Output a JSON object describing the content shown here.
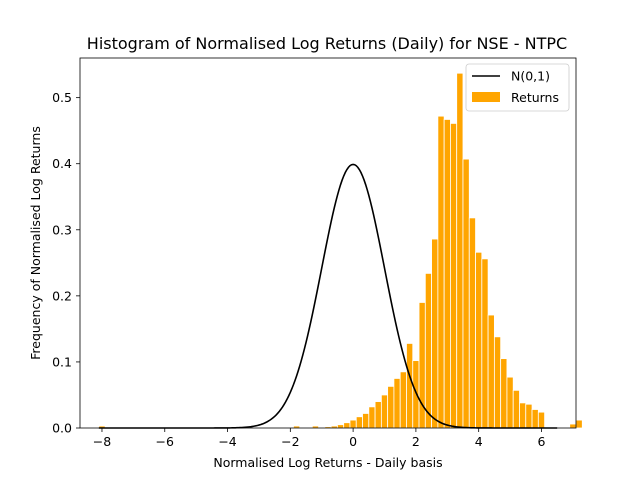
{
  "chart_data": {
    "type": "bar",
    "title": "Histogram of Normalised Log Returns (Daily) for NSE - NTPC",
    "xlabel": "Normalised Log Returns - Daily basis",
    "ylabel": "Frequency of Normalised Log Returns",
    "xlim": [
      -8.7,
      7.1
    ],
    "ylim": [
      0,
      0.56
    ],
    "xticks": [
      -8,
      -6,
      -4,
      -2,
      0,
      2,
      4,
      6
    ],
    "yticks": [
      0.0,
      0.1,
      0.2,
      0.3,
      0.4,
      0.5
    ],
    "xtick_labels": [
      "−8",
      "−6",
      "−4",
      "−2",
      "0",
      "2",
      "4",
      "6"
    ],
    "ytick_labels": [
      "0.0",
      "0.1",
      "0.2",
      "0.3",
      "0.4",
      "0.5"
    ],
    "grid": false,
    "legend_position": "top-right",
    "bin_start": -8.1,
    "bin_width": 0.2,
    "series": [
      {
        "name": "Returns",
        "kind": "histogram",
        "color": "#ffa500",
        "values": [
          0.003,
          0,
          0,
          0,
          0,
          0,
          0,
          0,
          0,
          0,
          0,
          0,
          0,
          0,
          0,
          0,
          0,
          0,
          0,
          0,
          0,
          0,
          0,
          0,
          0,
          0,
          0,
          0,
          0,
          0,
          0,
          0.003,
          0,
          0,
          0.003,
          0,
          0.002,
          0.003,
          0.005,
          0.008,
          0.012,
          0.017,
          0.022,
          0.032,
          0.04,
          0.05,
          0.063,
          0.075,
          0.085,
          0.128,
          0.102,
          0.19,
          0.234,
          0.286,
          0.472,
          0.467,
          0.461,
          0.537,
          0.407,
          0.318,
          0.266,
          0.256,
          0.171,
          0.138,
          0.105,
          0.077,
          0.057,
          0.038,
          0.036,
          0.028,
          0.024,
          0,
          0,
          0,
          0,
          0.006,
          0.012,
          0,
          0,
          0,
          0,
          0,
          0,
          0,
          0,
          0,
          0,
          0,
          0,
          0,
          0,
          0,
          0,
          0,
          0,
          0,
          0,
          0,
          0,
          0,
          0,
          0,
          0,
          0,
          0.003
        ]
      },
      {
        "name": "N(0,1)",
        "kind": "line",
        "color": "#000000",
        "function": "standard normal pdf"
      }
    ]
  }
}
